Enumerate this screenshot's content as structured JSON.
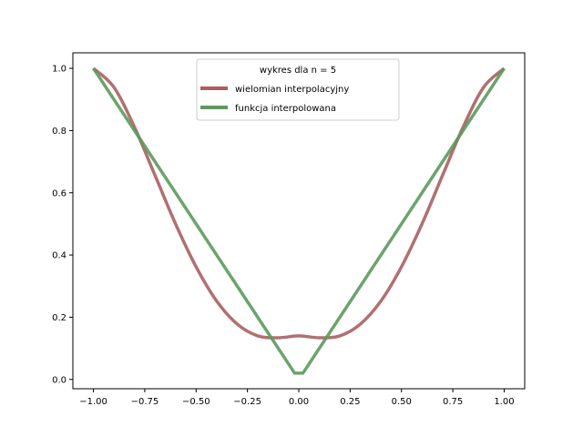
{
  "chart_data": {
    "type": "line",
    "title": "",
    "xlabel": "",
    "ylabel": "",
    "xlim": [
      -1.1,
      1.1
    ],
    "ylim": [
      -0.03,
      1.05
    ],
    "grid": false,
    "legend": {
      "title": "wykres dla n = 5",
      "placement": "top-center"
    },
    "x_ticks": [
      {
        "value": -1.0,
        "label": "−1.00"
      },
      {
        "value": -0.75,
        "label": "−0.75"
      },
      {
        "value": -0.5,
        "label": "−0.50"
      },
      {
        "value": -0.25,
        "label": "−0.25"
      },
      {
        "value": 0.0,
        "label": "0.00"
      },
      {
        "value": 0.25,
        "label": "0.25"
      },
      {
        "value": 0.5,
        "label": "0.50"
      },
      {
        "value": 0.75,
        "label": "0.75"
      },
      {
        "value": 1.0,
        "label": "1.00"
      }
    ],
    "y_ticks": [
      {
        "value": 0.0,
        "label": "0.0"
      },
      {
        "value": 0.2,
        "label": "0.2"
      },
      {
        "value": 0.4,
        "label": "0.4"
      },
      {
        "value": 0.6,
        "label": "0.6"
      },
      {
        "value": 0.8,
        "label": "0.8"
      },
      {
        "value": 1.0,
        "label": "1.0"
      }
    ],
    "series": [
      {
        "name": "wielomian interpolacyjny",
        "color": "#a86060",
        "x": [
          -1.0,
          -0.9,
          -0.8,
          -0.7,
          -0.6,
          -0.5,
          -0.4,
          -0.3,
          -0.2,
          -0.1,
          0.0,
          0.1,
          0.2,
          0.3,
          0.4,
          0.5,
          0.6,
          0.7,
          0.8,
          0.9,
          1.0
        ],
        "y": [
          1.0,
          0.939,
          0.811,
          0.656,
          0.5,
          0.362,
          0.252,
          0.178,
          0.14,
          0.134,
          0.14,
          0.134,
          0.14,
          0.178,
          0.252,
          0.362,
          0.5,
          0.656,
          0.811,
          0.939,
          1.0
        ]
      },
      {
        "name": "funkcja interpolowana",
        "color": "#5c9a5c",
        "x": [
          -1.0,
          -0.02,
          0.02,
          1.0
        ],
        "y": [
          1.0,
          0.02,
          0.02,
          1.0
        ]
      }
    ]
  }
}
